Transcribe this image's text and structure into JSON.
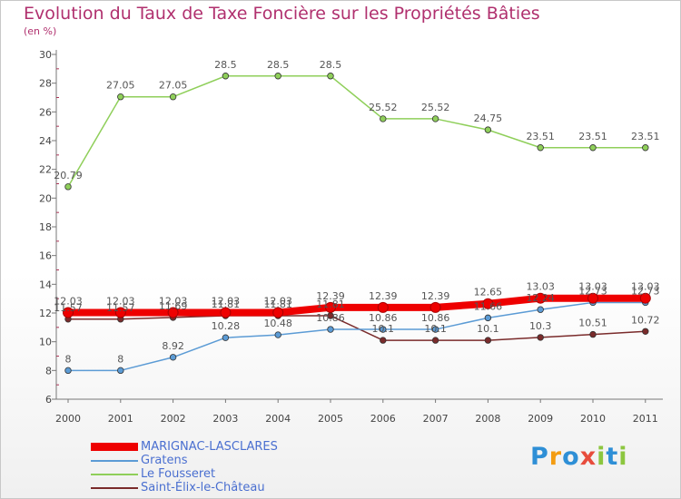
{
  "chart_data": {
    "type": "line",
    "title": "Evolution du Taux de Taxe Foncière sur les Propriétés Bâties",
    "subtitle": "(en %)",
    "x": [
      "2000",
      "2001",
      "2002",
      "2003",
      "2004",
      "2005",
      "2006",
      "2007",
      "2008",
      "2009",
      "2010",
      "2011"
    ],
    "ylim": [
      6,
      30
    ],
    "yticks": [
      6,
      8,
      10,
      12,
      14,
      16,
      18,
      20,
      22,
      24,
      26,
      28,
      30
    ],
    "grid": false,
    "legend_position": "bottom-left",
    "series": [
      {
        "name": "Saint-Élix-le-Château",
        "color": "#7a2b2b",
        "width": 1.5,
        "values": [
          11.57,
          11.57,
          11.69,
          11.81,
          11.81,
          11.81,
          10.1,
          10.1,
          10.1,
          10.3,
          10.51,
          10.72
        ],
        "labels": [
          "11.57",
          "11.57",
          "11.69",
          "11.81",
          "11.81",
          "11.81",
          "10.1",
          "10.1",
          "10.1",
          "10.3",
          "10.51",
          "10.72"
        ]
      },
      {
        "name": "Gratens",
        "color": "#5b9bd5",
        "width": 1.5,
        "values": [
          8,
          8,
          8.92,
          10.28,
          10.48,
          10.86,
          10.86,
          10.86,
          11.66,
          12.24,
          12.73,
          12.73
        ],
        "labels": [
          "8",
          "8",
          "8.92",
          "10.28",
          "10.48",
          "10.86",
          "10.86",
          "10.86",
          "11.66",
          "12.24",
          "12.73",
          "12.73"
        ]
      },
      {
        "name": "Le Fousseret",
        "color": "#8fcf5a",
        "width": 1.5,
        "values": [
          20.79,
          27.05,
          27.05,
          28.5,
          28.5,
          28.5,
          25.52,
          25.52,
          24.75,
          23.51,
          23.51,
          23.51
        ],
        "labels": [
          "20.79",
          "27.05",
          "27.05",
          "28.5",
          "28.5",
          "28.5",
          "25.52",
          "25.52",
          "24.75",
          "23.51",
          "23.51",
          "23.51"
        ]
      },
      {
        "name": "MARIGNAC-LASCLARES",
        "color": "#ee0000",
        "width": 8,
        "values": [
          12.03,
          12.03,
          12.03,
          12.03,
          12.03,
          12.39,
          12.39,
          12.39,
          12.65,
          13.03,
          13.03,
          13.03
        ],
        "labels": [
          "12.03",
          "12.03",
          "12.03",
          "12.03",
          "12.03",
          "12.39",
          "12.39",
          "12.39",
          "12.65",
          "13.03",
          "13.03",
          "13.03"
        ]
      }
    ]
  },
  "legend": [
    {
      "name": "MARIGNAC-LASCLARES",
      "color": "#ee0000",
      "thick": true,
      "text_color": "#4a6fd0"
    },
    {
      "name": "Gratens",
      "color": "#5b9bd5",
      "thick": false,
      "text_color": "#4a6fd0"
    },
    {
      "name": "Le Fousseret",
      "color": "#8fcf5a",
      "thick": false,
      "text_color": "#4a6fd0"
    },
    {
      "name": "Saint-Élix-le-Château",
      "color": "#7a2b2b",
      "thick": false,
      "text_color": "#4a6fd0"
    }
  ],
  "logo": {
    "letters": [
      "P",
      "r",
      "o",
      "x",
      "i",
      "t",
      "i"
    ],
    "colors": [
      "#2e8fd6",
      "#f39c12",
      "#2e8fd6",
      "#e74c3c",
      "#8cc63f",
      "#2e8fd6",
      "#8cc63f"
    ]
  }
}
